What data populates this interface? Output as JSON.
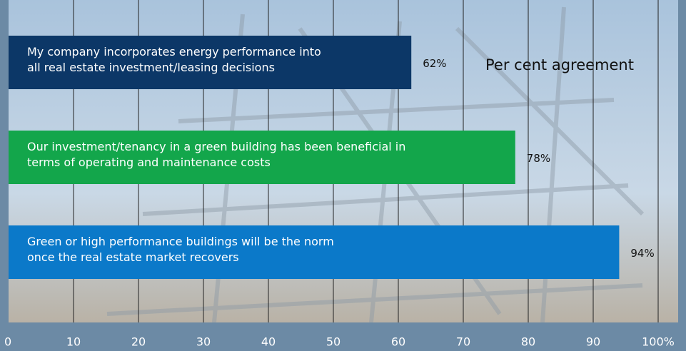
{
  "chart_data": {
    "type": "bar",
    "orientation": "horizontal",
    "annotation": "Per cent agreement",
    "categories": [
      "My company incorporates energy performance into\nall real estate investment/leasing decisions",
      "Our investment/tenancy in a green building has been beneficial in\nterms of operating and maintenance costs",
      "Green or high performance buildings will be the norm\nonce the real estate market recovers"
    ],
    "values": [
      62,
      78,
      94
    ],
    "value_labels": [
      "62%",
      "78%",
      "94%"
    ],
    "colors": [
      "#0c3767",
      "#13a64b",
      "#0b79c9"
    ],
    "xlim": [
      0,
      100
    ],
    "xticks": [
      0,
      10,
      20,
      30,
      40,
      50,
      60,
      70,
      80,
      90,
      {
        "value": 100,
        "label": "100%"
      }
    ],
    "grid": true
  }
}
